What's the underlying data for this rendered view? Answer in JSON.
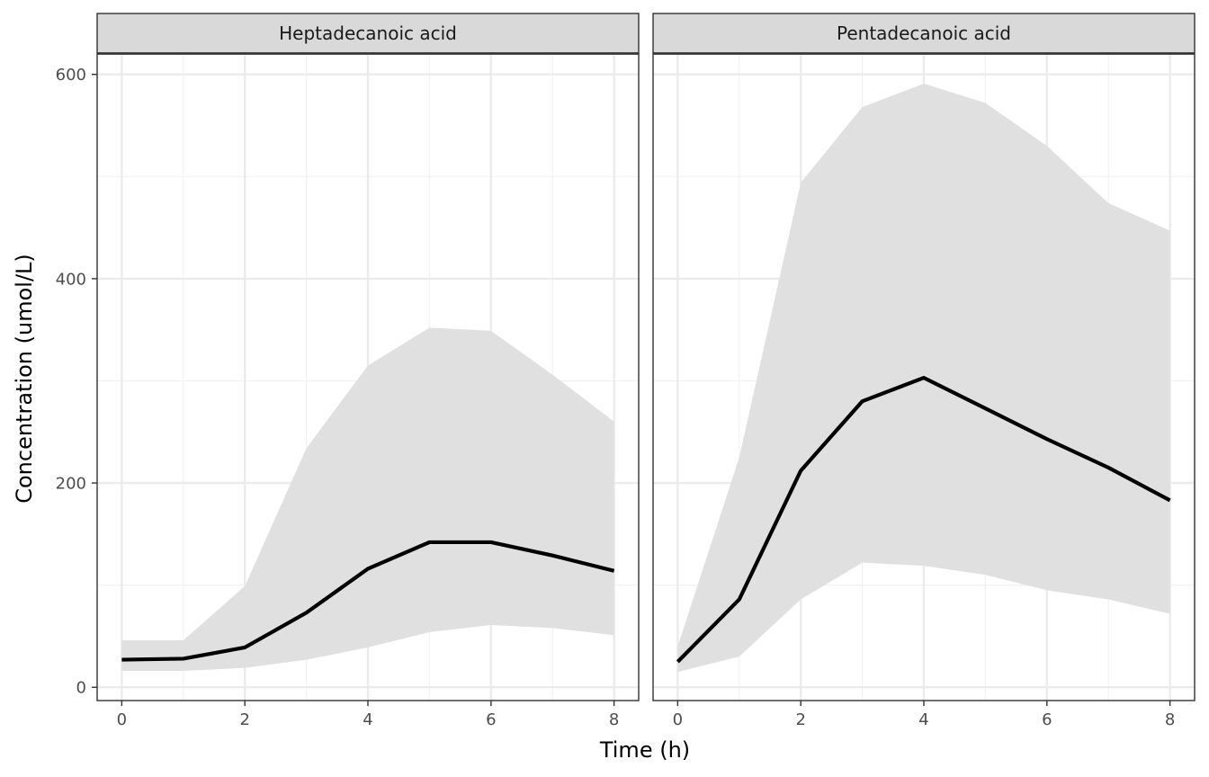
{
  "chart_data": {
    "type": "line",
    "xlabel": "Time (h)",
    "ylabel": "Concentration (umol/L)",
    "xlim": [
      -0.4,
      8.4
    ],
    "ylim": [
      -13,
      620
    ],
    "x_ticks": [
      0,
      2,
      4,
      6,
      8
    ],
    "y_ticks": [
      0,
      200,
      400,
      600
    ],
    "grid": true,
    "legend": "none",
    "colors": {
      "line": "#000000",
      "ribbon": "#e0e0e0",
      "strip": "#d9d9d9",
      "grid_major": "#ebebeb",
      "grid_minor": "#f2f2f2",
      "frame": "#333333"
    },
    "panels": [
      {
        "label": "Heptadecanoic acid",
        "series": {
          "x": [
            0,
            1,
            2,
            3,
            4,
            5,
            6,
            7,
            8
          ],
          "median": [
            27,
            28,
            39,
            73,
            116,
            142,
            142,
            129,
            114
          ],
          "lower": [
            16,
            16,
            19,
            27,
            39,
            54,
            61,
            58,
            51
          ],
          "upper": [
            46,
            46,
            99,
            234,
            315,
            352,
            349,
            306,
            260
          ]
        }
      },
      {
        "label": "Pentadecanoic acid",
        "series": {
          "x": [
            0,
            1,
            2,
            3,
            4,
            5,
            6,
            7,
            8
          ],
          "median": [
            25,
            86,
            212,
            280,
            303,
            273,
            243,
            215,
            183
          ],
          "lower": [
            15,
            30,
            86,
            122,
            119,
            110,
            95,
            86,
            72
          ],
          "upper": [
            40,
            225,
            494,
            568,
            591,
            572,
            530,
            474,
            447
          ]
        }
      }
    ]
  }
}
